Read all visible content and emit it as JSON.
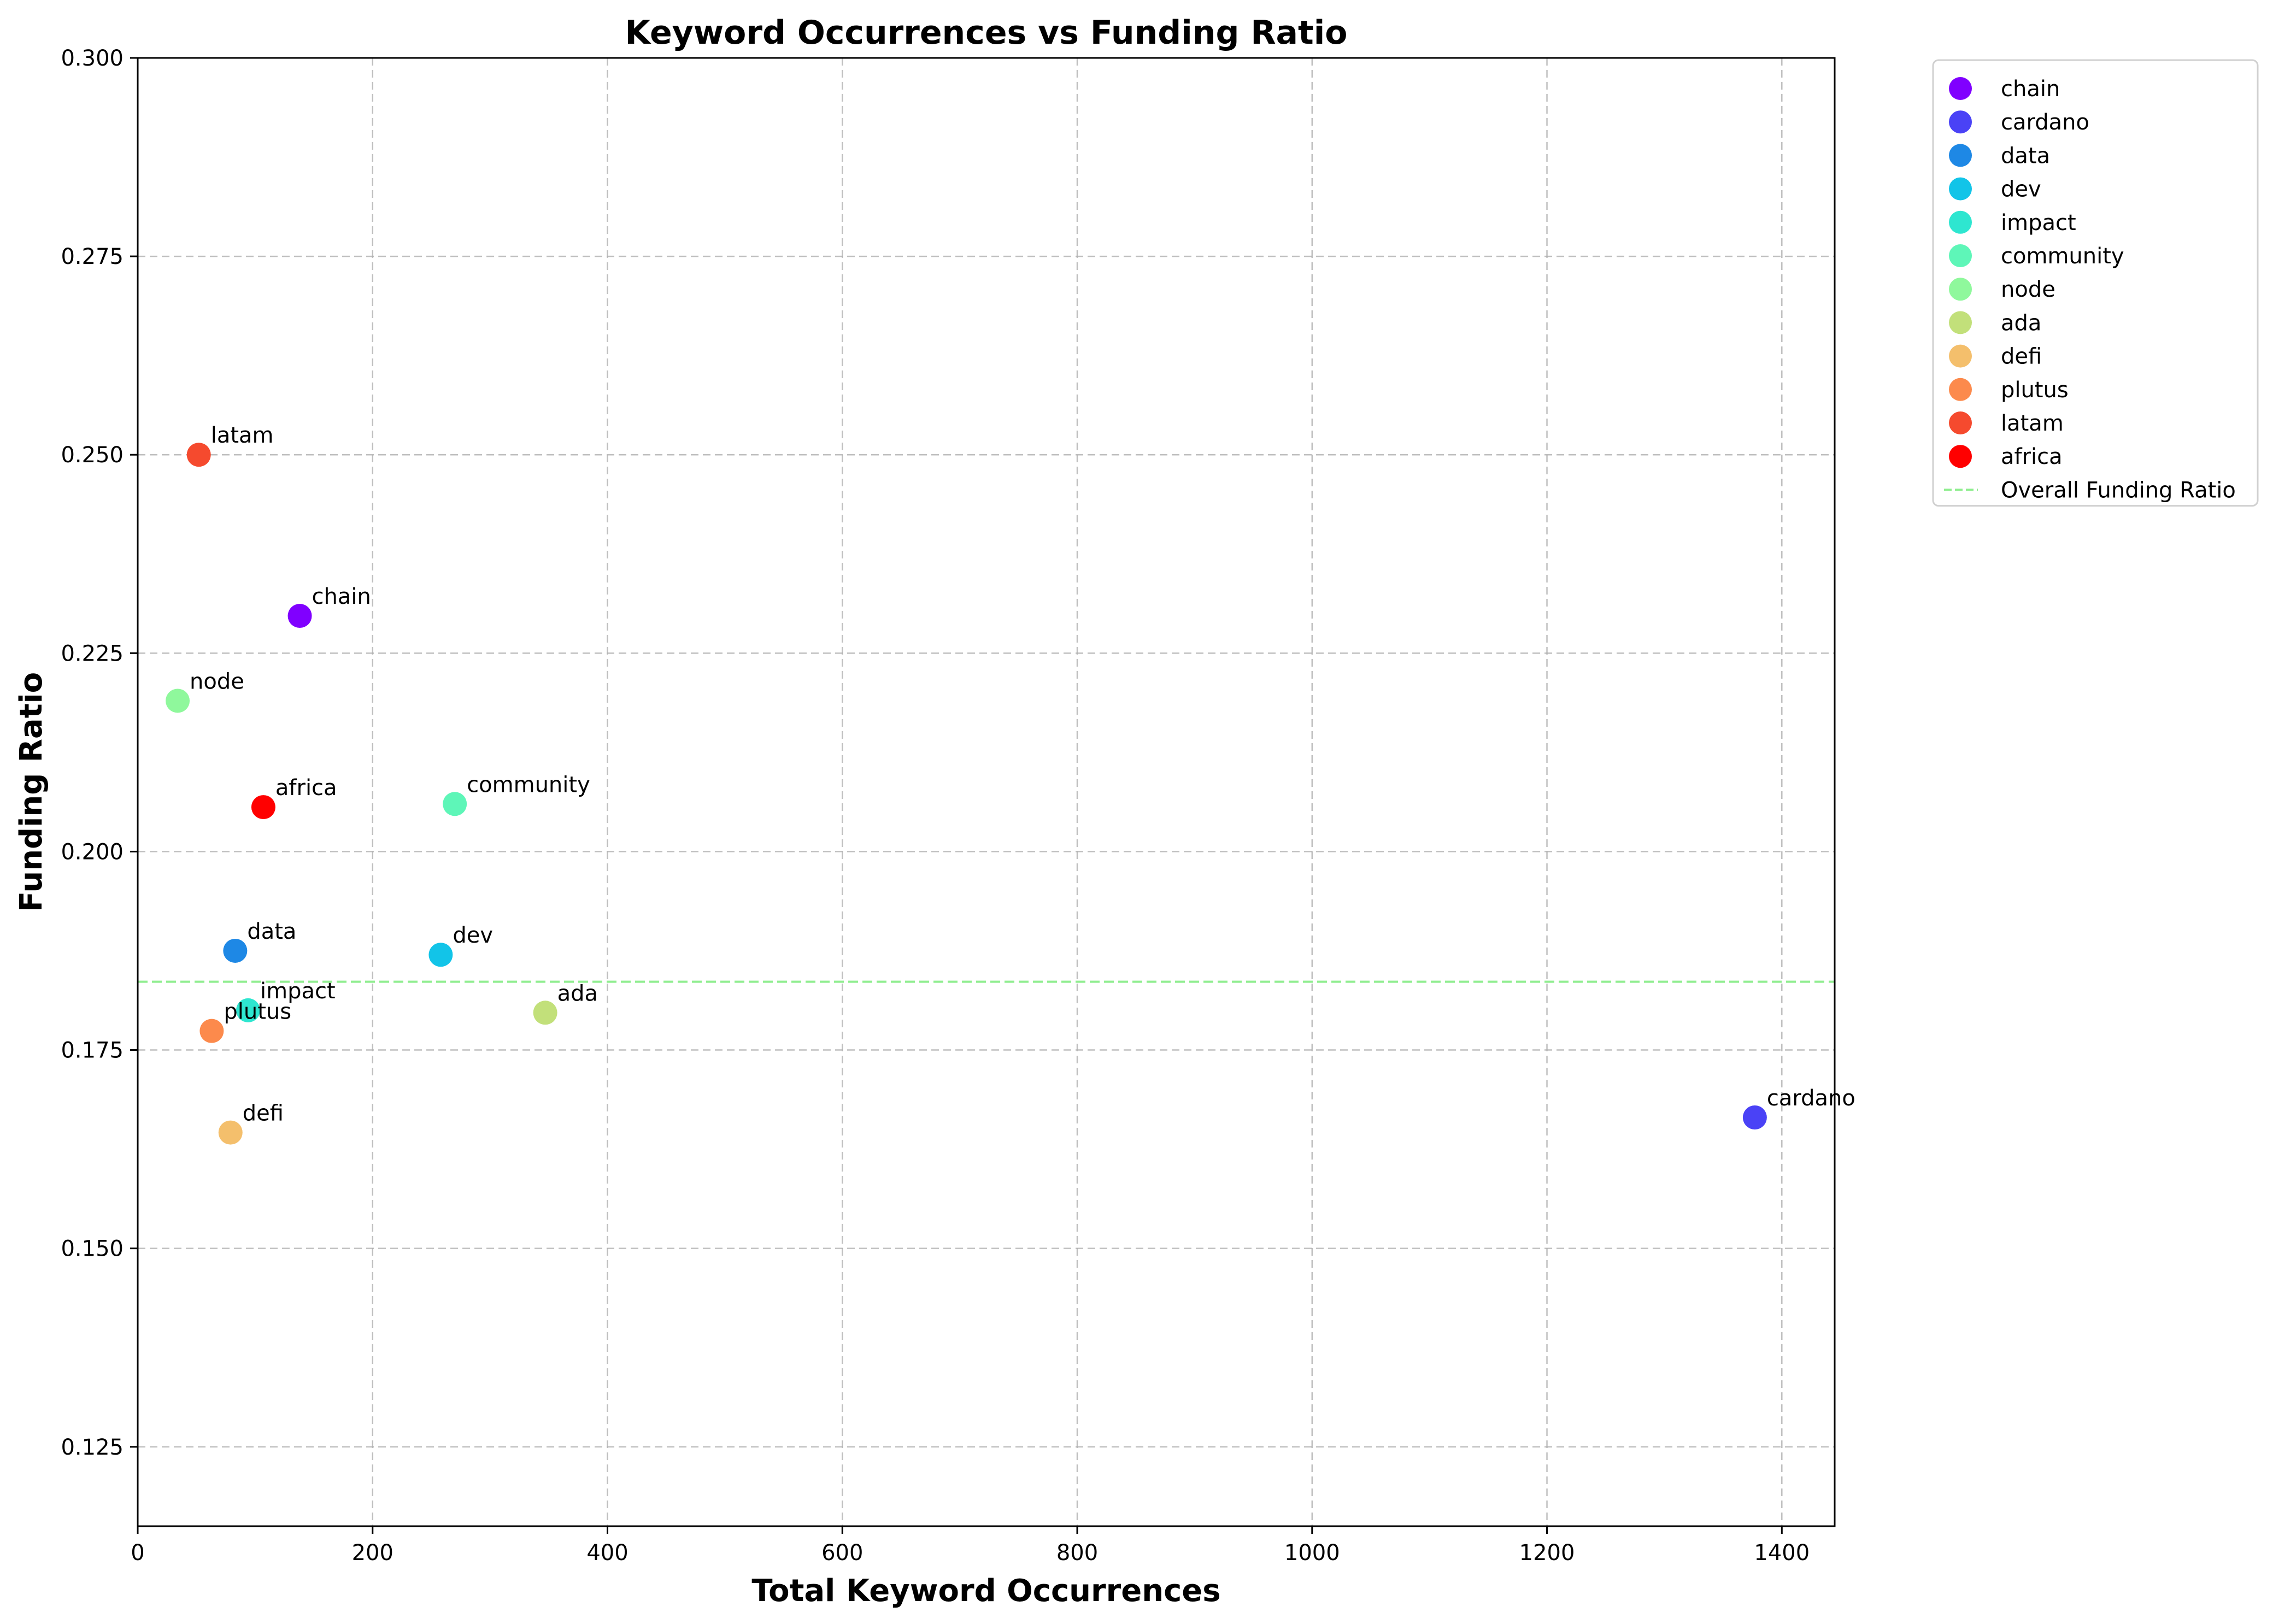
{
  "chart_data": {
    "type": "scatter",
    "title": "Keyword Occurrences vs Funding Ratio",
    "xlabel": "Total Keyword Occurrences",
    "ylabel": "Funding Ratio",
    "xlim": [
      0,
      1445
    ],
    "ylim": [
      0.115,
      0.3
    ],
    "x_ticks": [
      0,
      200,
      400,
      600,
      800,
      1000,
      1200,
      1400
    ],
    "y_ticks": [
      0.125,
      0.15,
      0.175,
      0.2,
      0.225,
      0.25,
      0.275,
      0.3
    ],
    "x_tick_labels": [
      "0",
      "200",
      "400",
      "600",
      "800",
      "1000",
      "1200",
      "1400"
    ],
    "y_tick_labels": [
      "0.125",
      "0.150",
      "0.175",
      "0.200",
      "0.225",
      "0.250",
      "0.275",
      "0.300"
    ],
    "grid": true,
    "legend_position": "outside-top-right",
    "points": [
      {
        "name": "chain",
        "x": 138,
        "y": 0.2297,
        "color": "#8000ff"
      },
      {
        "name": "cardano",
        "x": 1377,
        "y": 0.1665,
        "color": "#4a42f6"
      },
      {
        "name": "data",
        "x": 83,
        "y": 0.1875,
        "color": "#1e88e5"
      },
      {
        "name": "dev",
        "x": 258,
        "y": 0.187,
        "color": "#12c4e8"
      },
      {
        "name": "impact",
        "x": 94,
        "y": 0.18,
        "color": "#2ee6d0"
      },
      {
        "name": "community",
        "x": 270,
        "y": 0.206,
        "color": "#5ef6b8"
      },
      {
        "name": "node",
        "x": 34,
        "y": 0.219,
        "color": "#8ff89c"
      },
      {
        "name": "ada",
        "x": 347,
        "y": 0.1797,
        "color": "#c2e07a"
      },
      {
        "name": "defi",
        "x": 79,
        "y": 0.1646,
        "color": "#f4bf6c"
      },
      {
        "name": "plutus",
        "x": 63,
        "y": 0.1774,
        "color": "#fc8a4c"
      },
      {
        "name": "latam",
        "x": 52,
        "y": 0.25,
        "color": "#f54a2e"
      },
      {
        "name": "africa",
        "x": 107,
        "y": 0.2056,
        "color": "#ff0000"
      }
    ],
    "reference_line": {
      "name": "Overall Funding Ratio",
      "y": 0.1836,
      "color": "#90ee90",
      "style": "dashed"
    }
  }
}
